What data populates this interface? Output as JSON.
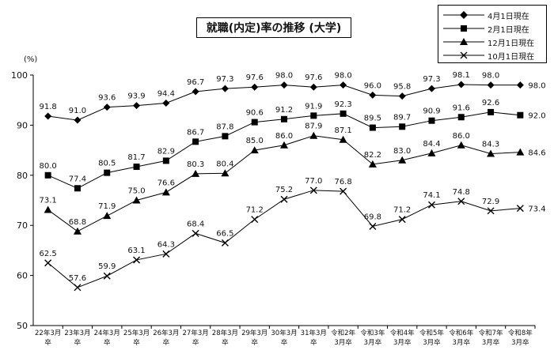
{
  "chart_data": {
    "type": "line",
    "title": "就職(内定)率の推移 (大学)",
    "ylabel": "(%)",
    "ylim": [
      50,
      100
    ],
    "yticks": [
      50,
      60,
      70,
      80,
      90,
      100
    ],
    "grid": false,
    "legend_position": "top-right",
    "categories": [
      [
        "22年3月",
        "卒"
      ],
      [
        "23年3月",
        "卒"
      ],
      [
        "24年3月",
        "卒"
      ],
      [
        "25年3月",
        "卒"
      ],
      [
        "26年3月",
        "卒"
      ],
      [
        "27年3月",
        "卒"
      ],
      [
        "28年3月",
        "卒"
      ],
      [
        "29年3月",
        "卒"
      ],
      [
        "30年3月",
        "卒"
      ],
      [
        "31年3月",
        "卒"
      ],
      [
        "令和2年",
        "3月卒"
      ],
      [
        "令和3年",
        "3月卒"
      ],
      [
        "令和4年",
        "3月卒"
      ],
      [
        "令和5年",
        "3月卒"
      ],
      [
        "令和6年",
        "3月卒"
      ],
      [
        "令和7年",
        "3月卒"
      ],
      [
        "令和8年",
        "3月卒"
      ]
    ],
    "series": [
      {
        "name": "4月1日現在",
        "marker": "diamond",
        "values": [
          91.8,
          91.0,
          93.6,
          93.9,
          94.4,
          96.7,
          97.3,
          97.6,
          98.0,
          97.6,
          98.0,
          96.0,
          95.8,
          97.3,
          98.1,
          98.0,
          98.0
        ]
      },
      {
        "name": "2月1日現在",
        "marker": "square",
        "values": [
          80.0,
          77.4,
          80.5,
          81.7,
          82.9,
          86.7,
          87.8,
          90.6,
          91.2,
          91.9,
          92.3,
          89.5,
          89.7,
          90.9,
          91.6,
          92.6,
          92.0
        ]
      },
      {
        "name": "12月1日現在",
        "marker": "triangle",
        "values": [
          73.1,
          68.8,
          71.9,
          75.0,
          76.6,
          80.3,
          80.4,
          85.0,
          86.0,
          87.9,
          87.1,
          82.2,
          83.0,
          84.4,
          86.0,
          84.3,
          84.6
        ]
      },
      {
        "name": "10月1日現在",
        "marker": "x",
        "values": [
          62.5,
          57.6,
          59.9,
          63.1,
          64.3,
          68.4,
          66.5,
          71.2,
          75.2,
          77.0,
          76.8,
          69.8,
          71.2,
          74.1,
          74.8,
          72.9,
          73.4
        ]
      }
    ]
  }
}
